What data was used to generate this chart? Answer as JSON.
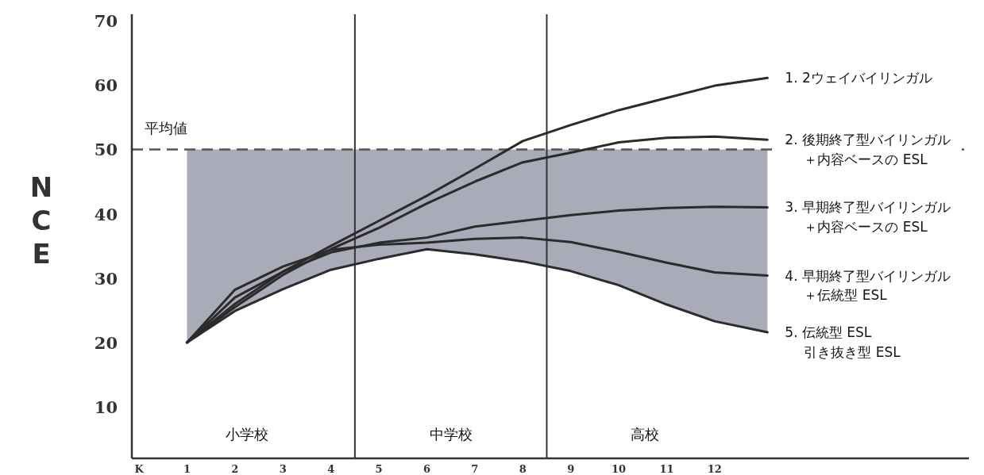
{
  "chart_data": {
    "type": "line",
    "ylabel": "NCE",
    "x": [
      1,
      2,
      3,
      4,
      5,
      6,
      7,
      8,
      9,
      10,
      11,
      12,
      13.1
    ],
    "xlim": [
      -0.15,
      17.3
    ],
    "ylim": [
      2,
      71
    ],
    "xticks": [
      {
        "value": 0,
        "label": "K"
      },
      1,
      2,
      3,
      4,
      5,
      6,
      7,
      8,
      9,
      10,
      11,
      12
    ],
    "yticks": [
      10,
      20,
      30,
      40,
      50,
      60,
      70
    ],
    "grid": false,
    "legend": false,
    "marker": "none",
    "line_style": "solid",
    "ref_lines": [
      {
        "axis": "y",
        "value": 50,
        "label": "平均値",
        "line_style": "dashed",
        "color": "#555555"
      },
      {
        "axis": "x",
        "value": 4.5,
        "color": "#333333"
      },
      {
        "axis": "x",
        "value": 8.5,
        "color": "#333333"
      }
    ],
    "annotations": [
      "小学校",
      "中学校",
      "高校"
    ],
    "series": [
      {
        "name": "1. 2ウェイバイリンガル",
        "color": "#2b2b2b",
        "values": [
          20,
          26,
          31,
          35,
          38.9,
          42.8,
          47,
          51.3,
          53.8,
          56.1,
          58,
          59.9,
          61.1
        ]
      },
      {
        "name": "2. 後期終了型バイリンガル＋内容ベースの ESL",
        "color": "#2b2b2b",
        "values": [
          20,
          25.5,
          30.5,
          34.5,
          37.8,
          41.6,
          45,
          48,
          49.5,
          51.1,
          51.8,
          52,
          51.5
        ]
      },
      {
        "name": "3. 早期終了型バイリンガル＋内容ベースの ESL",
        "color": "#2b2b2b",
        "values": [
          20,
          27,
          31,
          34,
          35.5,
          36.3,
          38,
          38.9,
          39.8,
          40.5,
          40.9,
          41.1,
          41
        ]
      },
      {
        "name": "4. 早期終了型バイリンガル＋伝統型 ESL",
        "color": "#2b2b2b",
        "values": [
          20,
          28.2,
          31.8,
          34.4,
          35.2,
          35.5,
          36.1,
          36.3,
          35.6,
          34.1,
          32.4,
          30.9,
          30.4
        ]
      },
      {
        "name": "5. 伝統型 ESL\n引き抜き型 ESL",
        "color": "#2b2b2b",
        "values": [
          20,
          24.9,
          28.3,
          31.3,
          33,
          34.5,
          33.7,
          32.6,
          31.1,
          28.9,
          25.9,
          23.3,
          21.6
        ],
        "lower": [
          20,
          24.9,
          28.3,
          31.3,
          33,
          34.5,
          33.7,
          32.6,
          31.1,
          28.9,
          25.9,
          23.3,
          21.6
        ],
        "upper": [
          50,
          50,
          50,
          50,
          50,
          50,
          50,
          50,
          50,
          50,
          50,
          50,
          50
        ]
      }
    ]
  }
}
